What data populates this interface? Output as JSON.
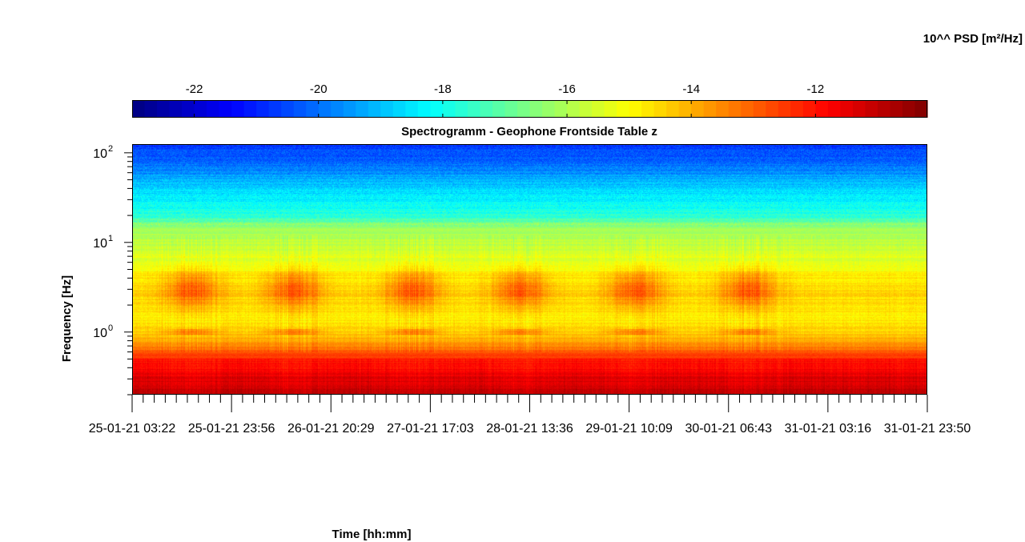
{
  "chart_data": {
    "type": "heatmap",
    "title": "Spectrogramm - Geophone Frontside Table z",
    "xlabel": "Time [hh:mm]",
    "ylabel": "Frequency [Hz]",
    "colorbar_label": "10^^ PSD [m²/Hz]",
    "colormap": "jet",
    "clim": [
      -23,
      -10.2
    ],
    "colorbar_ticks": [
      -22,
      -20,
      -18,
      -16,
      -14,
      -12
    ],
    "colorbar_tick_labels": [
      "-22",
      "-20",
      "-18",
      "-16",
      "-14",
      "-12"
    ],
    "y_scale": "log",
    "ylim": [
      0.2,
      125
    ],
    "y_ticks": [
      1,
      10,
      100
    ],
    "y_tick_labels": [
      {
        "base": "10",
        "exp": "0"
      },
      {
        "base": "10",
        "exp": "1"
      },
      {
        "base": "10",
        "exp": "2"
      }
    ],
    "x_tick_labels": [
      "25-01-21 03:22",
      "25-01-21 23:56",
      "26-01-21 20:29",
      "27-01-21 17:03",
      "28-01-21 13:36",
      "29-01-21 10:09",
      "30-01-21 06:43",
      "31-01-21 03:16",
      "31-01-21 23:50"
    ],
    "x_major_tick_count": 9,
    "x_minor_ticks_per_interval": 8,
    "daytime_activity_bands_center_fraction": [
      0.075,
      0.203,
      0.352,
      0.488,
      0.632,
      0.775
    ],
    "frequency_psd_profile": [
      {
        "freq_hz": 0.2,
        "psd_log10": -11.3
      },
      {
        "freq_hz": 0.3,
        "psd_log10": -11.6
      },
      {
        "freq_hz": 0.5,
        "psd_log10": -12.3
      },
      {
        "freq_hz": 0.7,
        "psd_log10": -13.4
      },
      {
        "freq_hz": 1.0,
        "psd_log10": -14.4
      },
      {
        "freq_hz": 1.5,
        "psd_log10": -14.8
      },
      {
        "freq_hz": 2.5,
        "psd_log10": -14.5
      },
      {
        "freq_hz": 4.0,
        "psd_log10": -14.7
      },
      {
        "freq_hz": 6.0,
        "psd_log10": -15.3
      },
      {
        "freq_hz": 10,
        "psd_log10": -15.8
      },
      {
        "freq_hz": 15,
        "psd_log10": -16.3
      },
      {
        "freq_hz": 20,
        "psd_log10": -17.7
      },
      {
        "freq_hz": 30,
        "psd_log10": -18.3
      },
      {
        "freq_hz": 50,
        "psd_log10": -19.2
      },
      {
        "freq_hz": 80,
        "psd_log10": -20.2
      },
      {
        "freq_hz": 125,
        "psd_log10": -20.6
      }
    ]
  }
}
